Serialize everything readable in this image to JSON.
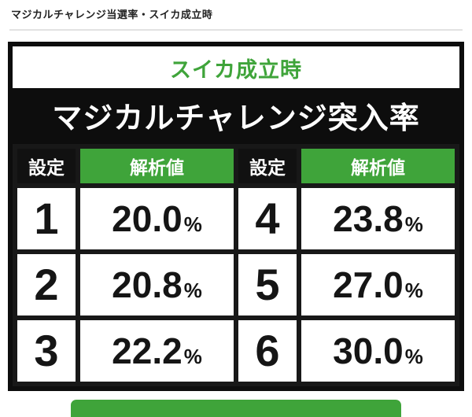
{
  "page": {
    "title": "マジカルチャレンジ当選率・スイカ成立時"
  },
  "panel": {
    "subtitle": "スイカ成立時",
    "title": "マジカルチャレンジ突入率",
    "header": {
      "setting": "設定",
      "value": "解析値"
    },
    "percent": "%"
  },
  "grid": {
    "rows": [
      {
        "ls": "1",
        "lv": "20.0",
        "rs": "4",
        "rv": "23.8"
      },
      {
        "ls": "2",
        "lv": "20.8",
        "rs": "5",
        "rv": "27.0"
      },
      {
        "ls": "3",
        "lv": "22.2",
        "rs": "6",
        "rv": "30.0"
      }
    ]
  },
  "chart_data": {
    "type": "table",
    "title": "マジカルチャレンジ突入率",
    "subtitle": "スイカ成立時",
    "columns": [
      "設定",
      "解析値"
    ],
    "rows": [
      {
        "setting": 1,
        "value_percent": 20.0
      },
      {
        "setting": 2,
        "value_percent": 20.8
      },
      {
        "setting": 3,
        "value_percent": 22.2
      },
      {
        "setting": 4,
        "value_percent": 23.8
      },
      {
        "setting": 5,
        "value_percent": 27.0
      },
      {
        "setting": 6,
        "value_percent": 30.0
      }
    ]
  },
  "colors": {
    "green": "#3fa43a",
    "ink": "#0d0d0d"
  }
}
